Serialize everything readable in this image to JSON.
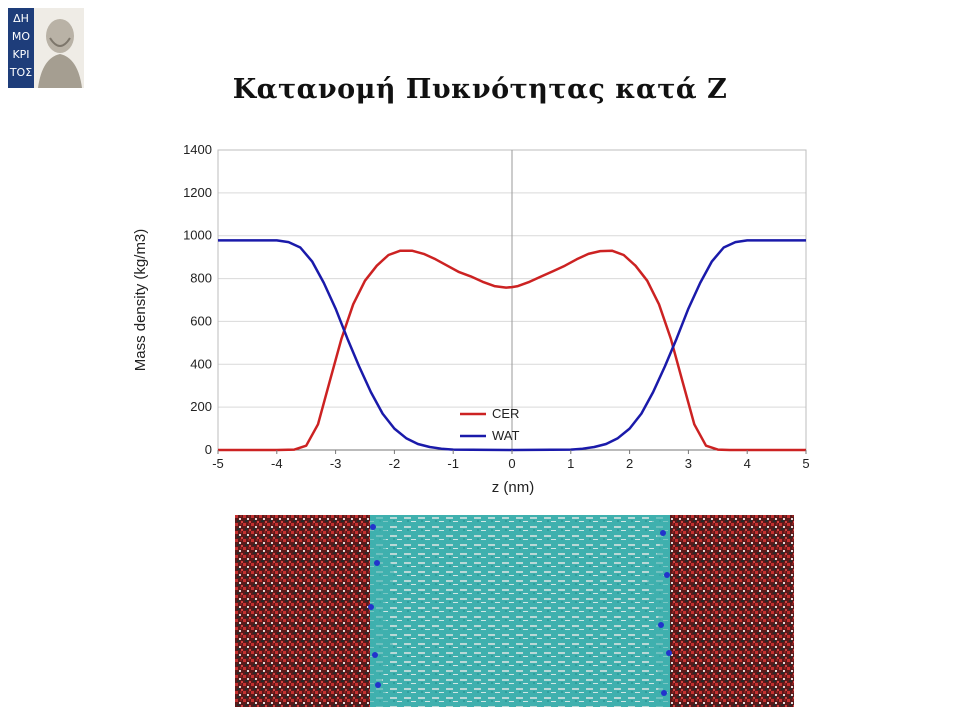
{
  "logo": {
    "text": "ΔΗΜΟΚΡΙΤΟΣ",
    "text_color": "#ffffff",
    "background": "#1e3d7a"
  },
  "slide": {
    "title": "Κατανομή Πυκνότητας κατά Ζ"
  },
  "chart_data": {
    "type": "line",
    "title": "",
    "xlabel": "z (nm)",
    "ylabel": "Mass density (kg/m3)",
    "xlim": [
      -5,
      5
    ],
    "ylim": [
      0,
      1400
    ],
    "xticks": [
      -5,
      -4,
      -3,
      -2,
      -1,
      0,
      1,
      2,
      3,
      4,
      5
    ],
    "yticks": [
      0,
      200,
      400,
      600,
      800,
      1000,
      1200,
      1400
    ],
    "grid": "horizontal",
    "legend": "bottom-center",
    "series": [
      {
        "name": "CER",
        "color": "#cc2222",
        "x": [
          -5,
          -4,
          -3.7,
          -3.5,
          -3.3,
          -3.1,
          -2.9,
          -2.7,
          -2.5,
          -2.3,
          -2.1,
          -1.9,
          -1.7,
          -1.5,
          -1.3,
          -1.1,
          -0.9,
          -0.7,
          -0.5,
          -0.3,
          -0.1,
          0,
          0.1,
          0.3,
          0.5,
          0.7,
          0.9,
          1.1,
          1.3,
          1.5,
          1.7,
          1.9,
          2.1,
          2.3,
          2.5,
          2.7,
          2.9,
          3.1,
          3.3,
          3.5,
          3.7,
          4,
          5
        ],
        "y": [
          0,
          0,
          2,
          20,
          120,
          320,
          520,
          680,
          790,
          860,
          910,
          930,
          930,
          915,
          890,
          860,
          830,
          810,
          785,
          765,
          758,
          760,
          765,
          785,
          810,
          835,
          860,
          890,
          915,
          928,
          930,
          910,
          860,
          790,
          680,
          520,
          320,
          120,
          20,
          2,
          0,
          0,
          0
        ]
      },
      {
        "name": "WAT",
        "color": "#1a1aaa",
        "x": [
          -5,
          -4.5,
          -4,
          -3.8,
          -3.6,
          -3.4,
          -3.2,
          -3.0,
          -2.8,
          -2.6,
          -2.4,
          -2.2,
          -2.0,
          -1.8,
          -1.6,
          -1.4,
          -1.2,
          -1.0,
          0,
          1.0,
          1.2,
          1.4,
          1.6,
          1.8,
          2.0,
          2.2,
          2.4,
          2.6,
          2.8,
          3.0,
          3.2,
          3.4,
          3.6,
          3.8,
          4,
          4.5,
          5
        ],
        "y": [
          978,
          978,
          978,
          970,
          945,
          880,
          780,
          660,
          520,
          390,
          270,
          170,
          100,
          55,
          28,
          14,
          6,
          2,
          0,
          2,
          6,
          14,
          28,
          55,
          100,
          170,
          270,
          390,
          520,
          660,
          780,
          880,
          945,
          970,
          978,
          978,
          978
        ]
      }
    ]
  }
}
